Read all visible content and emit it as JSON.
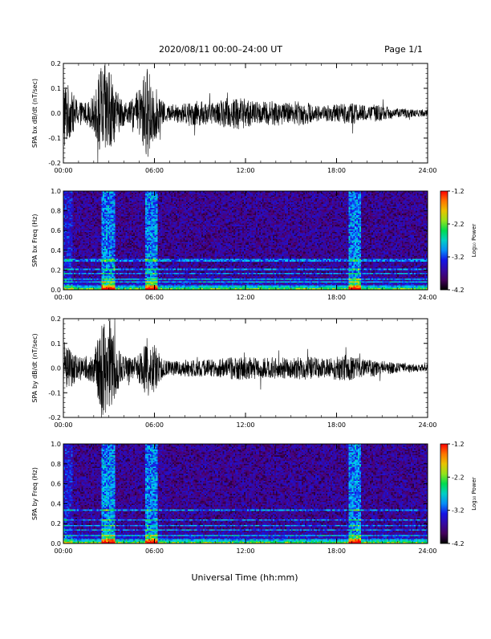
{
  "header": {
    "title": "2020/08/11  00:00–24:00 UT",
    "page": "Page 1/1"
  },
  "xlabel": "Universal Time (hh:mm)",
  "chart_data": [
    {
      "type": "line",
      "ylabel": "SPA bx dB/dt (nT/sec)",
      "xlim": [
        "00:00",
        "24:00"
      ],
      "ylim": [
        -0.2,
        0.2
      ],
      "yticks": [
        "0.2",
        "0.1",
        "0.0",
        "-0.1",
        "-0.2"
      ],
      "xticks": [
        "00:00",
        "06:00",
        "12:00",
        "18:00",
        "24:00"
      ],
      "envelope": {
        "hours": [
          0,
          0.5,
          1,
          1.5,
          2,
          2.5,
          3,
          3.5,
          4,
          4.5,
          5,
          5.5,
          6,
          6.5,
          7,
          7.5,
          8,
          8.5,
          9,
          9.5,
          10,
          10.5,
          11,
          11.5,
          12,
          12.5,
          13,
          13.5,
          14,
          14.5,
          15,
          15.5,
          16,
          16.5,
          17,
          17.5,
          18,
          18.5,
          19,
          19.5,
          20,
          20.5,
          21,
          21.5,
          22,
          22.5,
          23,
          23.5,
          24
        ],
        "amplitude": [
          0.16,
          0.09,
          0.05,
          0.045,
          0.07,
          0.2,
          0.2,
          0.09,
          0.05,
          0.05,
          0.1,
          0.19,
          0.12,
          0.05,
          0.03,
          0.04,
          0.04,
          0.05,
          0.05,
          0.045,
          0.04,
          0.055,
          0.065,
          0.07,
          0.06,
          0.05,
          0.045,
          0.05,
          0.05,
          0.045,
          0.04,
          0.05,
          0.045,
          0.035,
          0.03,
          0.035,
          0.035,
          0.04,
          0.045,
          0.035,
          0.03,
          0.035,
          0.03,
          0.025,
          0.02,
          0.02,
          0.015,
          0.015,
          0.015
        ]
      }
    },
    {
      "type": "heatmap",
      "ylabel": "SPA bx Freq (Hz)",
      "xlim": [
        "00:00",
        "24:00"
      ],
      "ylim": [
        0.0,
        1.0
      ],
      "yticks": [
        "1.0",
        "0.8",
        "0.6",
        "0.4",
        "0.2",
        "0.0"
      ],
      "xticks": [
        "00:00",
        "06:00",
        "12:00",
        "18:00",
        "24:00"
      ],
      "colorbar": {
        "label": "Log₁₀ Power",
        "ticks": [
          "-1.2",
          "-2.2",
          "-3.2",
          "-4.2"
        ],
        "range": [
          -4.2,
          -1.2
        ]
      },
      "bands_hz": [
        0.3,
        0.21,
        0.16,
        0.11,
        0.075
      ],
      "active_hours": [
        [
          2.5,
          3.4
        ],
        [
          5.4,
          6.2
        ],
        [
          18.8,
          19.6
        ]
      ]
    },
    {
      "type": "line",
      "ylabel": "SPA by dB/dt (nT/sec)",
      "xlim": [
        "00:00",
        "24:00"
      ],
      "ylim": [
        -0.2,
        0.2
      ],
      "yticks": [
        "0.2",
        "0.1",
        "0.0",
        "-0.1",
        "-0.2"
      ],
      "xticks": [
        "00:00",
        "06:00",
        "12:00",
        "18:00",
        "24:00"
      ],
      "envelope": {
        "hours": [
          0,
          0.5,
          1,
          1.5,
          2,
          2.5,
          3,
          3.5,
          4,
          4.5,
          5,
          5.5,
          6,
          6.5,
          7,
          7.5,
          8,
          8.5,
          9,
          9.5,
          10,
          10.5,
          11,
          11.5,
          12,
          12.5,
          13,
          13.5,
          14,
          14.5,
          15,
          15.5,
          16,
          16.5,
          17,
          17.5,
          18,
          18.5,
          19,
          19.5,
          20,
          20.5,
          21,
          21.5,
          22,
          22.5,
          23,
          23.5,
          24
        ],
        "amplitude": [
          0.09,
          0.08,
          0.05,
          0.05,
          0.06,
          0.2,
          0.2,
          0.1,
          0.05,
          0.04,
          0.06,
          0.13,
          0.1,
          0.04,
          0.03,
          0.03,
          0.035,
          0.035,
          0.035,
          0.035,
          0.035,
          0.04,
          0.045,
          0.05,
          0.045,
          0.045,
          0.04,
          0.045,
          0.045,
          0.045,
          0.04,
          0.045,
          0.05,
          0.045,
          0.04,
          0.04,
          0.05,
          0.05,
          0.05,
          0.04,
          0.035,
          0.035,
          0.03,
          0.025,
          0.02,
          0.02,
          0.015,
          0.015,
          0.015
        ]
      }
    },
    {
      "type": "heatmap",
      "ylabel": "SPA by Freq (Hz)",
      "xlim": [
        "00:00",
        "24:00"
      ],
      "ylim": [
        0.0,
        1.0
      ],
      "yticks": [
        "1.0",
        "0.8",
        "0.6",
        "0.4",
        "0.2",
        "0.0"
      ],
      "xticks": [
        "00:00",
        "06:00",
        "12:00",
        "18:00",
        "24:00"
      ],
      "colorbar": {
        "label": "Log₁₀ Power",
        "ticks": [
          "-1.2",
          "-2.2",
          "-3.2",
          "-4.2"
        ],
        "range": [
          -4.2,
          -1.2
        ]
      },
      "bands_hz": [
        0.33,
        0.24,
        0.18,
        0.13,
        0.08
      ],
      "active_hours": [
        [
          2.5,
          3.4
        ],
        [
          5.4,
          6.2
        ],
        [
          18.8,
          19.6
        ]
      ]
    }
  ]
}
